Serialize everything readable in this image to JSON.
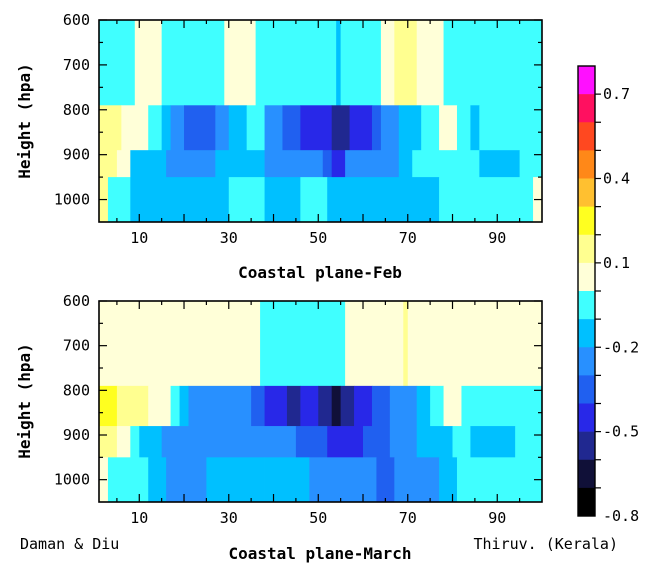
{
  "chart_data": [
    {
      "type": "heatmap",
      "xlabel": "Coastal plane-Feb",
      "ylabel": "Height (hpa)",
      "xlim": [
        1,
        100
      ],
      "ylim": [
        600,
        1050
      ],
      "x_ticks": [
        10,
        30,
        50,
        70,
        90
      ],
      "y_ticks": [
        600,
        700,
        800,
        900,
        1000
      ],
      "rows": [
        {
          "p0": 600,
          "p1": 790,
          "cells": [
            [
              1,
              9,
              0.0
            ],
            [
              9,
              15,
              0.1
            ],
            [
              15,
              29,
              0.0
            ],
            [
              29,
              36,
              0.1
            ],
            [
              36,
              54,
              0.0
            ],
            [
              54,
              55,
              -0.1
            ],
            [
              55,
              64,
              0.0
            ],
            [
              64,
              67,
              0.1
            ],
            [
              67,
              72,
              0.2
            ],
            [
              72,
              78,
              0.1
            ],
            [
              78,
              100,
              0.0
            ]
          ]
        },
        {
          "p0": 790,
          "p1": 890,
          "cells": [
            [
              1,
              6,
              0.2
            ],
            [
              6,
              12,
              0.1
            ],
            [
              12,
              15,
              0.0
            ],
            [
              15,
              17,
              -0.1
            ],
            [
              17,
              20,
              -0.2
            ],
            [
              20,
              27,
              -0.3
            ],
            [
              27,
              30,
              -0.2
            ],
            [
              30,
              34,
              -0.1
            ],
            [
              34,
              38,
              0.0
            ],
            [
              38,
              42,
              -0.2
            ],
            [
              42,
              46,
              -0.3
            ],
            [
              46,
              53,
              -0.4
            ],
            [
              53,
              57,
              -0.5
            ],
            [
              57,
              62,
              -0.4
            ],
            [
              62,
              64,
              -0.3
            ],
            [
              64,
              68,
              -0.2
            ],
            [
              68,
              73,
              -0.1
            ],
            [
              73,
              77,
              0.0
            ],
            [
              77,
              81,
              0.1
            ],
            [
              81,
              84,
              0.0
            ],
            [
              84,
              86,
              -0.1
            ],
            [
              86,
              100,
              0.0
            ]
          ]
        },
        {
          "p0": 890,
          "p1": 950,
          "cells": [
            [
              1,
              5,
              0.2
            ],
            [
              5,
              8,
              0.1
            ],
            [
              8,
              16,
              -0.1
            ],
            [
              16,
              27,
              -0.2
            ],
            [
              27,
              38,
              -0.1
            ],
            [
              38,
              44,
              -0.2
            ],
            [
              44,
              51,
              -0.2
            ],
            [
              51,
              53,
              -0.3
            ],
            [
              53,
              56,
              -0.4
            ],
            [
              56,
              62,
              -0.2
            ],
            [
              62,
              68,
              -0.2
            ],
            [
              68,
              71,
              -0.1
            ],
            [
              71,
              80,
              0.0
            ],
            [
              80,
              86,
              0.0
            ],
            [
              86,
              95,
              -0.1
            ],
            [
              95,
              100,
              0.0
            ]
          ]
        },
        {
          "p0": 950,
          "p1": 1050,
          "cells": [
            [
              1,
              3,
              0.2
            ],
            [
              3,
              8,
              0.0
            ],
            [
              8,
              30,
              -0.1
            ],
            [
              30,
              38,
              0.0
            ],
            [
              38,
              46,
              -0.1
            ],
            [
              46,
              52,
              0.0
            ],
            [
              52,
              77,
              -0.1
            ],
            [
              77,
              98,
              0.0
            ],
            [
              98,
              100,
              0.1
            ]
          ]
        }
      ]
    },
    {
      "type": "heatmap",
      "xlabel": "Coastal plane-March",
      "ylabel": "Height (hpa)",
      "xlim": [
        1,
        100
      ],
      "ylim": [
        600,
        1050
      ],
      "x_ticks": [
        10,
        30,
        50,
        70,
        90
      ],
      "y_ticks": [
        600,
        700,
        800,
        900,
        1000
      ],
      "rows": [
        {
          "p0": 600,
          "p1": 790,
          "cells": [
            [
              1,
              37,
              0.1
            ],
            [
              37,
              56,
              0.0
            ],
            [
              56,
              69,
              0.1
            ],
            [
              69,
              70,
              0.2
            ],
            [
              70,
              100,
              0.1
            ]
          ]
        },
        {
          "p0": 790,
          "p1": 880,
          "cells": [
            [
              1,
              5,
              0.3
            ],
            [
              5,
              8,
              0.2
            ],
            [
              8,
              12,
              0.2
            ],
            [
              12,
              17,
              0.1
            ],
            [
              17,
              19,
              0.0
            ],
            [
              19,
              21,
              -0.1
            ],
            [
              21,
              35,
              -0.2
            ],
            [
              35,
              38,
              -0.3
            ],
            [
              38,
              43,
              -0.4
            ],
            [
              43,
              46,
              -0.5
            ],
            [
              46,
              50,
              -0.4
            ],
            [
              50,
              53,
              -0.5
            ],
            [
              53,
              55,
              -0.6
            ],
            [
              55,
              58,
              -0.5
            ],
            [
              58,
              62,
              -0.4
            ],
            [
              62,
              66,
              -0.3
            ],
            [
              66,
              72,
              -0.2
            ],
            [
              72,
              75,
              -0.1
            ],
            [
              75,
              78,
              0.0
            ],
            [
              78,
              82,
              0.1
            ],
            [
              82,
              100,
              0.0
            ]
          ]
        },
        {
          "p0": 880,
          "p1": 950,
          "cells": [
            [
              1,
              5,
              0.2
            ],
            [
              5,
              8,
              0.1
            ],
            [
              8,
              10,
              0.0
            ],
            [
              10,
              15,
              -0.1
            ],
            [
              15,
              25,
              -0.2
            ],
            [
              25,
              45,
              -0.2
            ],
            [
              45,
              52,
              -0.3
            ],
            [
              52,
              60,
              -0.4
            ],
            [
              60,
              66,
              -0.3
            ],
            [
              66,
              72,
              -0.2
            ],
            [
              72,
              80,
              -0.1
            ],
            [
              80,
              84,
              0.0
            ],
            [
              84,
              94,
              -0.1
            ],
            [
              94,
              100,
              0.0
            ]
          ]
        },
        {
          "p0": 950,
          "p1": 1050,
          "cells": [
            [
              1,
              3,
              0.1
            ],
            [
              3,
              12,
              0.0
            ],
            [
              12,
              16,
              -0.1
            ],
            [
              16,
              25,
              -0.2
            ],
            [
              25,
              38,
              -0.1
            ],
            [
              38,
              48,
              -0.1
            ],
            [
              48,
              63,
              -0.2
            ],
            [
              63,
              67,
              -0.3
            ],
            [
              67,
              77,
              -0.2
            ],
            [
              77,
              81,
              -0.1
            ],
            [
              81,
              100,
              0.0
            ]
          ]
        }
      ]
    }
  ],
  "colorbar": {
    "tick_labels": [
      "0.7",
      "0.4",
      "0.1",
      "-0.2",
      "-0.5",
      "-0.8"
    ],
    "levels": [
      0.8,
      0.7,
      0.6,
      0.5,
      0.4,
      0.3,
      0.2,
      0.1,
      0.0,
      -0.1,
      -0.2,
      -0.3,
      -0.4,
      -0.5,
      -0.6,
      -0.7
    ],
    "colors": [
      "#ff10ff",
      "#ff1060",
      "#ff4820",
      "#ff8818",
      "#ffc030",
      "#ffff20",
      "#ffff90",
      "#ffffd8",
      "#40ffff",
      "#00c0ff",
      "#2890ff",
      "#2060f0",
      "#2828e8",
      "#202890",
      "#101038",
      "#000000"
    ]
  },
  "footer": {
    "left_label": "Daman & Diu",
    "right_label": "Thiruv. (Kerala)"
  }
}
